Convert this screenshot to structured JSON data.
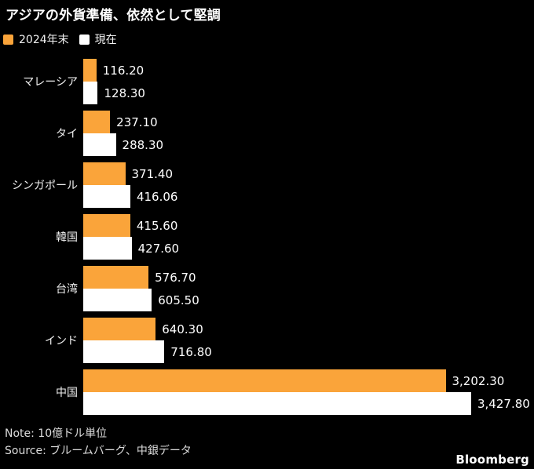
{
  "title": "アジアの外貨準備、依然として堅調",
  "legend": [
    {
      "label": "2024年末",
      "color": "#FAA43A"
    },
    {
      "label": "現在",
      "color": "#FFFFFF"
    }
  ],
  "chart_data": {
    "type": "bar",
    "orientation": "horizontal",
    "title": "アジアの外貨準備、依然として堅調",
    "categories": [
      "マレーシア",
      "タイ",
      "シンガポール",
      "韓国",
      "台湾",
      "インド",
      "中国"
    ],
    "series": [
      {
        "name": "2024年末",
        "color": "#FAA43A",
        "values": [
          116.2,
          237.1,
          371.4,
          415.6,
          576.7,
          640.3,
          3202.3
        ]
      },
      {
        "name": "現在",
        "color": "#FFFFFF",
        "values": [
          128.3,
          288.3,
          416.06,
          427.6,
          605.5,
          716.8,
          3427.8
        ]
      }
    ],
    "xlim": [
      0,
      3427.8
    ],
    "value_labels": true,
    "value_format": "thousands-comma-2dp",
    "grid": false,
    "legend_position": "top-left"
  },
  "footer": {
    "note": "Note: 10億ドル単位",
    "source": "Source: ブルームバーグ、中銀データ",
    "brand": "Bloomberg"
  },
  "colors": {
    "background": "#000000",
    "bar_2024": "#FAA43A",
    "bar_current": "#FFFFFF",
    "text": "#FFFFFF",
    "muted_text": "#DCDCDC"
  }
}
